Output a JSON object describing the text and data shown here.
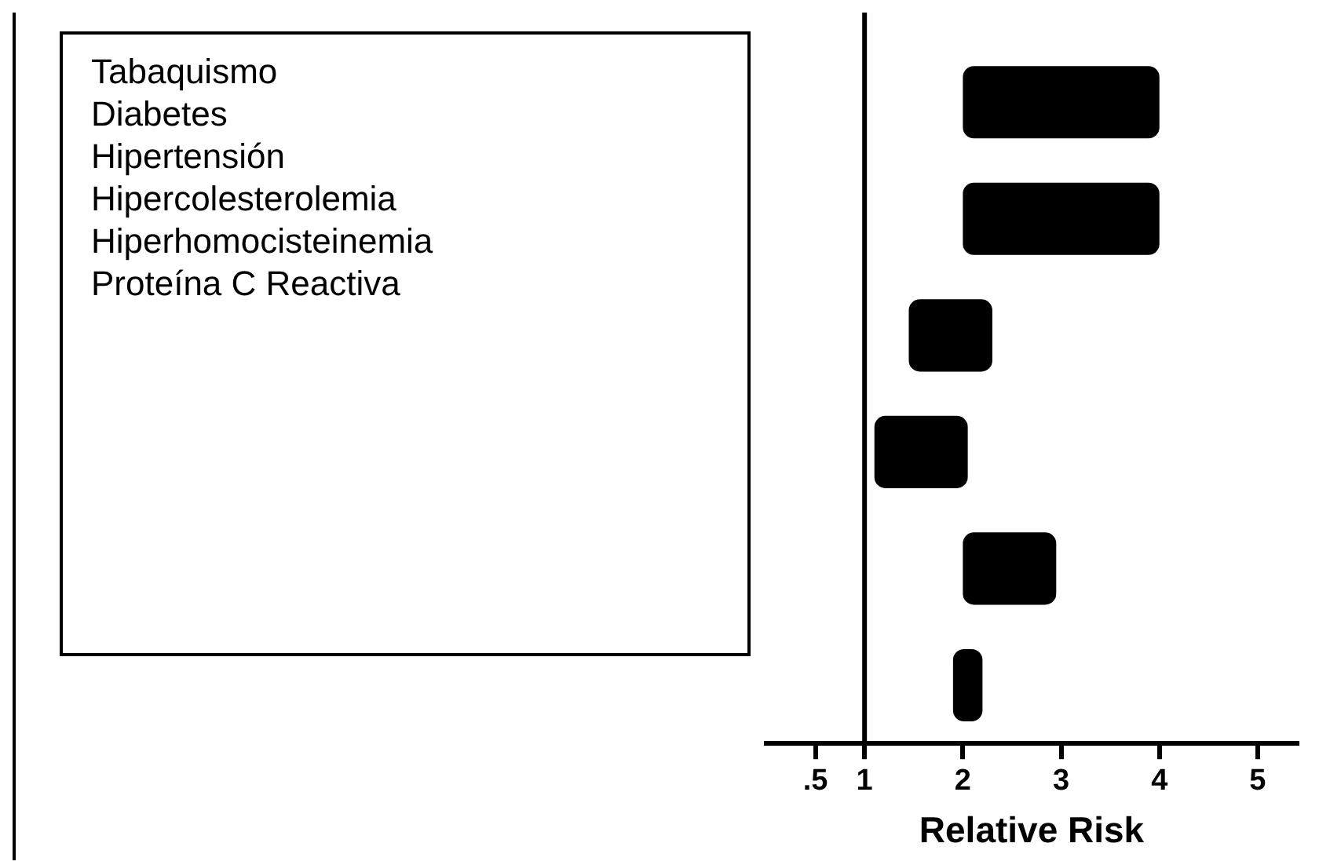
{
  "chart_data": {
    "type": "bar",
    "orientation": "horizontal",
    "xlabel": "Relative Risk",
    "categories": [
      null,
      null,
      null,
      null,
      null,
      null
    ],
    "annotations": [
      "Tabaquismo",
      "Diabetes",
      "Hipertensión",
      "Hipercolesterolemia",
      "Hiperhomocisteinemia",
      "Proteína C Reactiva"
    ],
    "base": [
      2,
      2,
      1.45,
      1.1,
      2,
      1.9
    ],
    "values": [
      2,
      2,
      0.85,
      0.95,
      0.95,
      0.3
    ],
    "color": "#000000",
    "xlim": [
      0,
      5.4
    ],
    "xticks": [
      {
        "value": 0.5,
        "label": ".5"
      },
      1,
      2,
      3,
      4,
      5
    ],
    "ref_lines": [
      {
        "axis": "x",
        "value": 1,
        "color": "#000000"
      }
    ],
    "tick_labels": "x",
    "grid": false,
    "legend": false
  }
}
